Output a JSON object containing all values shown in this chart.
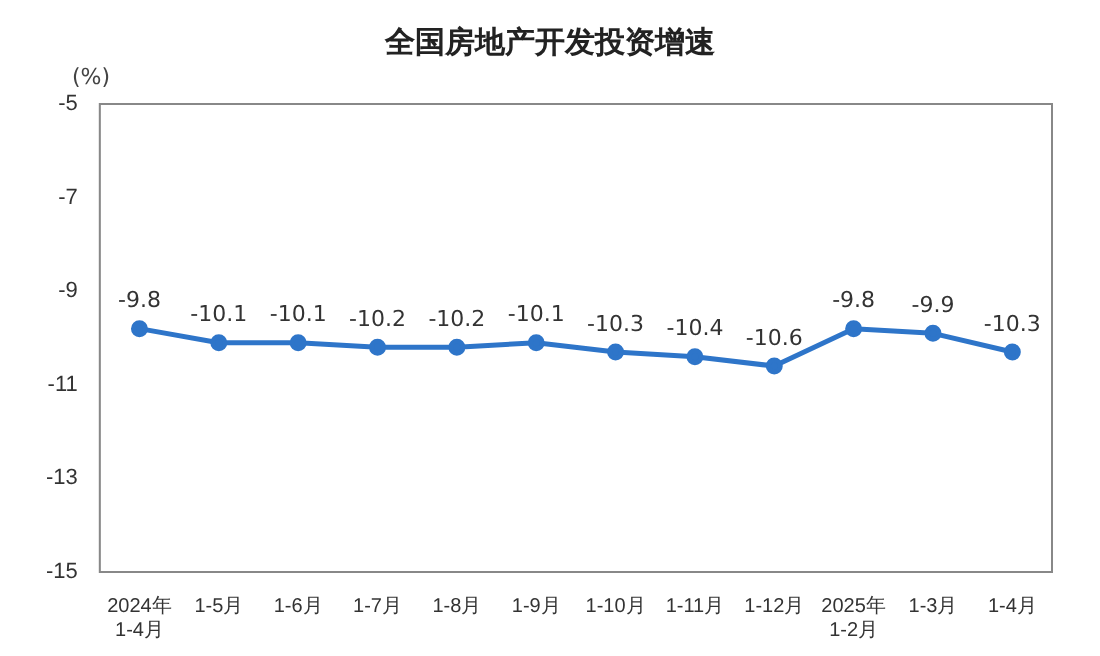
{
  "chart_data": {
    "type": "line",
    "title": "全国房地产开发投资增速",
    "ylabel": "(%)",
    "categories": [
      "2024年\n1-4月",
      "1-5月",
      "1-6月",
      "1-7月",
      "1-8月",
      "1-9月",
      "1-10月",
      "1-11月",
      "1-12月",
      "2025年\n1-2月",
      "1-3月",
      "1-4月"
    ],
    "series": [
      {
        "color": "#2e75c9",
        "values": [
          -9.8,
          -10.1,
          -10.1,
          -10.2,
          -10.2,
          -10.1,
          -10.3,
          -10.4,
          -10.6,
          -9.8,
          -9.9,
          -10.3
        ]
      }
    ],
    "ylim": [
      -15,
      -5
    ],
    "yticks": [
      -5,
      -7,
      -9,
      -11,
      -13,
      -15
    ],
    "grid": false,
    "legend": false,
    "marker": "circle",
    "line_style": "solid",
    "data_labels": true
  }
}
